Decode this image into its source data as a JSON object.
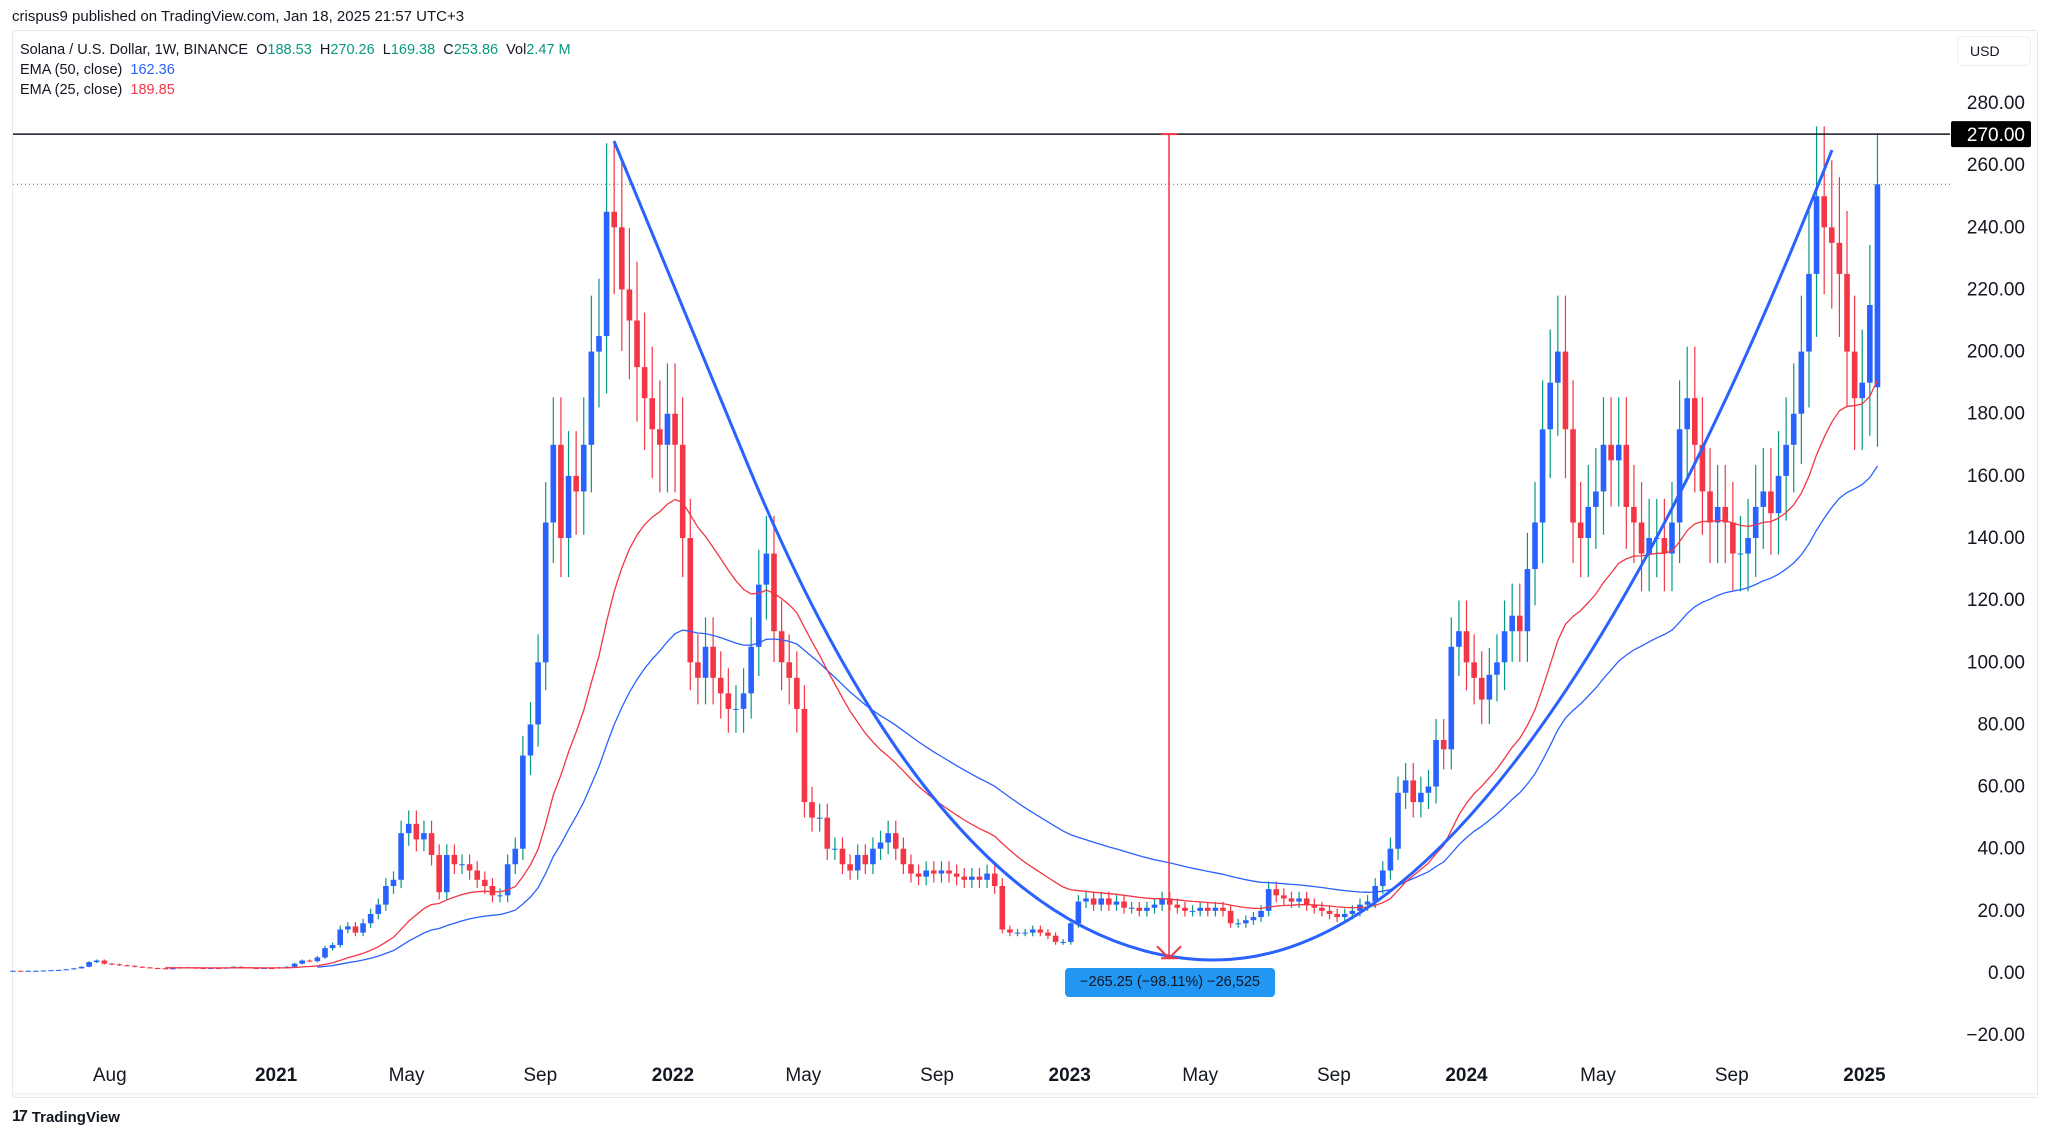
{
  "header": {
    "published": "crispus9 published on TradingView.com, Jan 18, 2025 21:57 UTC+3"
  },
  "legend": {
    "symbol": "Solana / U.S. Dollar, 1W, BINANCE",
    "o_label": "O",
    "o": "188.53",
    "h_label": "H",
    "h": "270.26",
    "l_label": "L",
    "l": "169.38",
    "c_label": "C",
    "c": "253.86",
    "vol_label": "Vol",
    "vol": "2.47 M",
    "ema50_label": "EMA (50, close)",
    "ema50": "162.36",
    "ema25_label": "EMA (25, close)",
    "ema25": "189.85"
  },
  "currency": "USD",
  "price_marker": "270.00",
  "measure_label": "−265.25 (−98.11%) −26,525",
  "footer": {
    "brand": "TradingView"
  },
  "colors": {
    "up": "#2962ff",
    "down": "#f23645",
    "ema50": "#2962ff",
    "ema25": "#f23645",
    "measure": "#f23645",
    "drawing": "#2962ff"
  },
  "chart_data": {
    "type": "candlestick",
    "interval": "1W",
    "ylim": [
      -20,
      285
    ],
    "y_ticks": [
      "280.00",
      "260.00",
      "240.00",
      "220.00",
      "200.00",
      "180.00",
      "160.00",
      "140.00",
      "120.00",
      "100.00",
      "80.00",
      "60.00",
      "40.00",
      "20.00",
      "0.00",
      "−20.00"
    ],
    "x_ticks": [
      {
        "label": "Aug",
        "date": "2020-08-01",
        "bold": false
      },
      {
        "label": "2021",
        "date": "2021-01-01",
        "bold": true
      },
      {
        "label": "May",
        "date": "2021-05-01",
        "bold": false
      },
      {
        "label": "Sep",
        "date": "2021-09-01",
        "bold": false
      },
      {
        "label": "2022",
        "date": "2022-01-01",
        "bold": true
      },
      {
        "label": "May",
        "date": "2022-05-01",
        "bold": false
      },
      {
        "label": "Sep",
        "date": "2022-09-01",
        "bold": false
      },
      {
        "label": "2023",
        "date": "2023-01-01",
        "bold": true
      },
      {
        "label": "May",
        "date": "2023-05-01",
        "bold": false
      },
      {
        "label": "Sep",
        "date": "2023-09-01",
        "bold": false
      },
      {
        "label": "2024",
        "date": "2024-01-01",
        "bold": true
      },
      {
        "label": "May",
        "date": "2024-05-01",
        "bold": false
      },
      {
        "label": "Sep",
        "date": "2024-09-01",
        "bold": false
      },
      {
        "label": "2025",
        "date": "2025-01-01",
        "bold": true
      }
    ],
    "weekly_close": [
      0.7,
      0.6,
      0.7,
      0.7,
      0.8,
      0.9,
      1.0,
      1.2,
      1.5,
      2.0,
      3.5,
      4.0,
      3.0,
      2.8,
      2.5,
      2.3,
      2.0,
      1.8,
      1.6,
      1.5,
      1.4,
      1.5,
      1.8,
      1.7,
      1.6,
      1.5,
      1.6,
      1.5,
      1.7,
      2.0,
      1.8,
      1.6,
      1.5,
      1.6,
      1.5,
      1.8,
      2.0,
      3.0,
      4.0,
      3.8,
      5,
      8,
      9,
      14,
      15,
      13,
      16,
      19,
      22,
      28,
      30,
      45,
      48,
      43,
      45,
      38,
      26,
      38,
      35,
      35,
      33,
      30,
      28,
      25,
      25,
      35,
      40,
      70,
      80,
      100,
      145,
      170,
      140,
      160,
      155,
      170,
      200,
      205,
      245,
      240,
      220,
      210,
      195,
      185,
      175,
      170,
      180,
      170,
      140,
      100,
      95,
      105,
      95,
      90,
      85,
      85,
      90,
      105,
      125,
      135,
      110,
      100,
      95,
      85,
      55,
      50,
      50,
      40,
      40,
      35,
      33,
      38,
      35,
      40,
      42,
      45,
      40,
      35,
      32,
      31,
      33,
      32,
      33,
      32,
      31,
      30,
      31,
      30,
      32,
      28,
      14,
      13,
      13,
      13,
      14,
      13,
      12,
      10,
      10,
      16,
      23,
      24,
      22,
      24,
      22,
      23,
      21,
      21,
      20,
      21,
      22,
      24,
      22,
      21,
      20,
      20,
      21,
      20,
      21,
      20,
      16,
      16,
      17,
      18,
      20,
      27,
      25,
      24,
      23,
      24,
      22,
      21,
      20,
      19,
      18,
      19,
      20,
      22,
      23,
      28,
      33,
      40,
      58,
      62,
      55,
      58,
      60,
      75,
      72,
      105,
      110,
      100,
      95,
      88,
      96,
      100,
      110,
      115,
      110,
      130,
      145,
      175,
      190,
      200,
      175,
      145,
      140,
      150,
      155,
      170,
      165,
      170,
      150,
      145,
      135,
      140,
      140,
      135,
      145,
      175,
      185,
      170,
      155,
      145,
      150,
      145,
      135,
      135,
      140,
      150,
      155,
      148,
      160,
      170,
      180,
      200,
      225,
      250,
      240,
      235,
      225,
      200,
      185,
      190,
      215,
      253.86
    ],
    "last_candle": {
      "open": 188.53,
      "high": 270.26,
      "low": 169.38,
      "close": 253.86
    },
    "horizontal_line": 270,
    "last_price_line": 253.86,
    "measure": {
      "from": 270,
      "to": 4.75,
      "change": -265.25,
      "change_pct": -98.11
    }
  }
}
